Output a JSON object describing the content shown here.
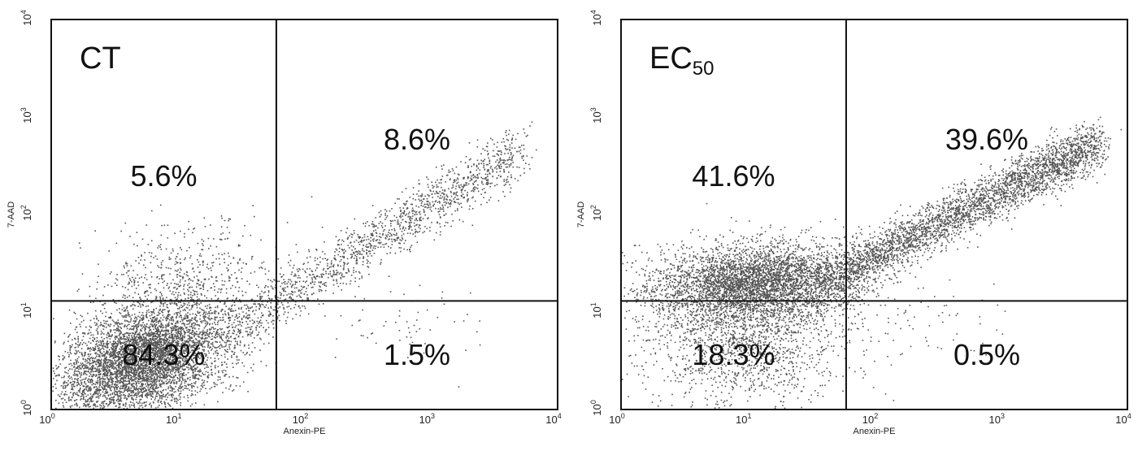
{
  "chart_data": [
    {
      "type": "scatter",
      "title": "CT",
      "title_sub": "",
      "xlabel": "Anexin-PE",
      "ylabel": "7-AAD",
      "xscale": "log",
      "yscale": "log",
      "xlim": [
        1,
        10000
      ],
      "ylim": [
        1,
        10000
      ],
      "gate": {
        "x": 60,
        "y": 13
      },
      "x_tick_labels": [
        {
          "base": "10",
          "exp": "0"
        },
        {
          "base": "10",
          "exp": "1"
        },
        {
          "base": "10",
          "exp": "2"
        },
        {
          "base": "10",
          "exp": "3"
        },
        {
          "base": "10",
          "exp": "4"
        }
      ],
      "y_tick_labels": [
        {
          "base": "10",
          "exp": "0"
        },
        {
          "base": "10",
          "exp": "1"
        },
        {
          "base": "10",
          "exp": "2"
        },
        {
          "base": "10",
          "exp": "3"
        },
        {
          "base": "10",
          "exp": "4"
        }
      ],
      "quadrants": {
        "upper_left": "5.6%",
        "upper_right": "8.6%",
        "lower_left": "84.3%",
        "lower_right": "1.5%"
      },
      "point_color": "#555555",
      "populations": [
        {
          "count": 5200,
          "cx": 5.5,
          "cy": 3.2,
          "sx": 0.33,
          "sy": 0.28,
          "rho": 0.4
        },
        {
          "count": 650,
          "cx": 10,
          "cy": 20,
          "sx": 0.42,
          "sy": 0.28,
          "rho": 0.3
        },
        {
          "count": 1500,
          "x_from": 25,
          "x_to": 5000,
          "y_at_from": 6,
          "y_at_to": 450,
          "spread": 0.13
        },
        {
          "count": 60,
          "cx": 600,
          "cy": 8,
          "sx": 0.3,
          "sy": 0.2,
          "rho": 0
        }
      ]
    },
    {
      "type": "scatter",
      "title": "EC",
      "title_sub": "50",
      "xlabel": "Anexin-PE",
      "ylabel": "7-AAD",
      "xscale": "log",
      "yscale": "log",
      "xlim": [
        1,
        10000
      ],
      "ylim": [
        1,
        10000
      ],
      "gate": {
        "x": 60,
        "y": 13
      },
      "x_tick_labels": [
        {
          "base": "10",
          "exp": "0"
        },
        {
          "base": "10",
          "exp": "1"
        },
        {
          "base": "10",
          "exp": "2"
        },
        {
          "base": "10",
          "exp": "3"
        },
        {
          "base": "10",
          "exp": "4"
        }
      ],
      "y_tick_labels": [
        {
          "base": "10",
          "exp": "0"
        },
        {
          "base": "10",
          "exp": "1"
        },
        {
          "base": "10",
          "exp": "2"
        },
        {
          "base": "10",
          "exp": "3"
        },
        {
          "base": "10",
          "exp": "4"
        }
      ],
      "quadrants": {
        "upper_left": "41.6%",
        "upper_right": "39.6%",
        "lower_left": "18.3%",
        "lower_right": "0.5%"
      },
      "point_color": "#555555",
      "populations": [
        {
          "count": 4300,
          "cx": 12,
          "cy": 20,
          "sx": 0.42,
          "sy": 0.2,
          "rho": 0.15
        },
        {
          "count": 3300,
          "x_from": 40,
          "x_to": 6000,
          "y_at_from": 20,
          "y_at_to": 550,
          "spread": 0.12
        },
        {
          "count": 1500,
          "cx": 10,
          "cy": 5,
          "sx": 0.4,
          "sy": 0.32,
          "rho": 0
        },
        {
          "count": 50,
          "cx": 300,
          "cy": 8,
          "sx": 0.3,
          "sy": 0.2,
          "rho": 0
        }
      ]
    }
  ]
}
